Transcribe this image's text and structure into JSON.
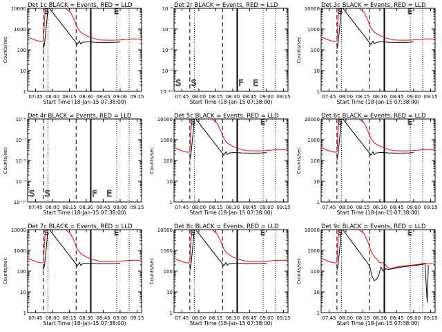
{
  "figure": {
    "xlabel_common": "Start Time (18-Jan-15 07:38:00)",
    "ylabel_common": "Counts/sec",
    "x_tick_labels": [
      "07:45",
      "08:00",
      "08:15",
      "08:30",
      "08:45",
      "09:00",
      "09:15"
    ]
  },
  "chart_data": [
    {
      "type": "line",
      "title": "Det 1c BLACK = Events, RED = LLD",
      "flag": "normal",
      "markers": [
        "S",
        "E"
      ],
      "xlabel": "Start Time (18-Jan-15 07:38:00)",
      "ylabel": "Counts/sec",
      "ylim": [
        1,
        10000
      ],
      "yscale": "log",
      "series": [
        {
          "name": "Events",
          "color": "#000000"
        },
        {
          "name": "LLD",
          "color": "#ff0000"
        }
      ]
    },
    {
      "type": "line",
      "title": "Det 2r BLACK = Events, RED = LLD",
      "flag": "empty",
      "markers": [
        "S",
        "F",
        "E"
      ],
      "xlabel": "Start Time (18-Jan-15 07:38:00)",
      "ylabel": "",
      "ylim": [
        1e-10,
        1e-06
      ],
      "yscale": "log",
      "series": []
    },
    {
      "type": "line",
      "title": "Det 3c BLACK = Events, RED = LLD",
      "flag": "normal",
      "markers": [
        "S",
        "E"
      ],
      "xlabel": "Start Time (18-Jan-15 07:38:00)",
      "ylabel": "Counts/sec",
      "ylim": [
        1,
        10000
      ],
      "yscale": "log",
      "series": [
        {
          "name": "Events",
          "color": "#000000"
        },
        {
          "name": "LLD",
          "color": "#ff0000"
        }
      ]
    },
    {
      "type": "line",
      "title": "Det 4r BLACK = Events, RED = LLD",
      "flag": "empty",
      "markers": [
        "S",
        "F",
        "E"
      ],
      "xlabel": "Start Time (18-Jan-15 07:38:00)",
      "ylabel": "Counts/sec",
      "ylim": [
        1e-10,
        1e-06
      ],
      "yscale": "log",
      "series": []
    },
    {
      "type": "line",
      "title": "Det 5c BLACK = Events, RED = LLD",
      "flag": "normal",
      "markers": [
        "S",
        "E"
      ],
      "xlabel": "Start Time (18-Jan-15 07:38:00)",
      "ylabel": "Counts/sec",
      "ylim": [
        1,
        10000
      ],
      "yscale": "log",
      "series": [
        {
          "name": "Events",
          "color": "#000000"
        },
        {
          "name": "LLD",
          "color": "#ff0000"
        }
      ]
    },
    {
      "type": "line",
      "title": "Det 6c BLACK = Events, RED = LLD",
      "flag": "normal",
      "markers": [
        "S",
        "E"
      ],
      "xlabel": "Start Time (18-Jan-15 07:38:00)",
      "ylabel": "Counts/sec",
      "ylim": [
        1,
        10000
      ],
      "yscale": "log",
      "series": [
        {
          "name": "Events",
          "color": "#000000"
        },
        {
          "name": "LLD",
          "color": "#ff0000"
        }
      ]
    },
    {
      "type": "line",
      "title": "Det 7c BLACK = Events, RED = LLD",
      "flag": "normal",
      "markers": [
        "S",
        "E"
      ],
      "xlabel": "Start Time (18-Jan-15 07:38:00)",
      "ylabel": "Counts/sec",
      "ylim": [
        1,
        10000
      ],
      "yscale": "log",
      "series": [
        {
          "name": "Events",
          "color": "#000000"
        },
        {
          "name": "LLD",
          "color": "#ff0000"
        }
      ]
    },
    {
      "type": "line",
      "title": "Det 8c BLACK = Events, RED = LLD",
      "flag": "normal",
      "markers": [
        "S",
        "E"
      ],
      "xlabel": "Start Time (18-Jan-15 07:38:00)",
      "ylabel": "Counts/sec",
      "ylim": [
        1,
        10000
      ],
      "yscale": "log",
      "series": [
        {
          "name": "Events",
          "color": "#000000"
        },
        {
          "name": "LLD",
          "color": "#ff0000"
        }
      ]
    },
    {
      "type": "line",
      "title": "Det 9c BLACK = Events, RED = LLD",
      "flag": "det9",
      "markers": [
        "S",
        "E"
      ],
      "xlabel": "Start Time (18-Jan-15 07:38:00)",
      "ylabel": "Counts/sec",
      "ylim": [
        1,
        10000
      ],
      "yscale": "log",
      "series": [
        {
          "name": "Events",
          "color": "#000000"
        },
        {
          "name": "LLD",
          "color": "#ff0000"
        }
      ]
    }
  ]
}
